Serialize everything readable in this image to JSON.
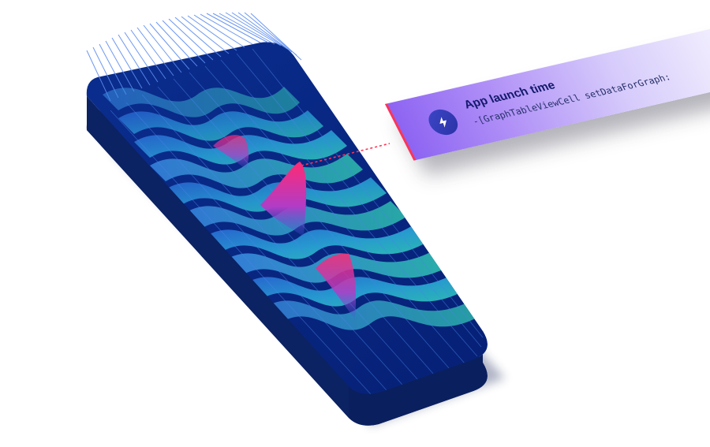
{
  "card": {
    "title": "App launch time",
    "subtitle": "-[GraphTableViewCell setDataForGraph:",
    "icon": "lightning-bolt-icon"
  },
  "colors": {
    "device_dark": "#07257c",
    "device_mid": "#0c3a9e",
    "device_shadow": "#1b2a5c",
    "wave_blue": "#2a78e0",
    "wave_teal": "#2fc8b0",
    "peak_pink": "#ff2a73",
    "card_purple": "#8c63f2",
    "card_light": "#f4f1fe",
    "connector_red": "#ff3355"
  }
}
